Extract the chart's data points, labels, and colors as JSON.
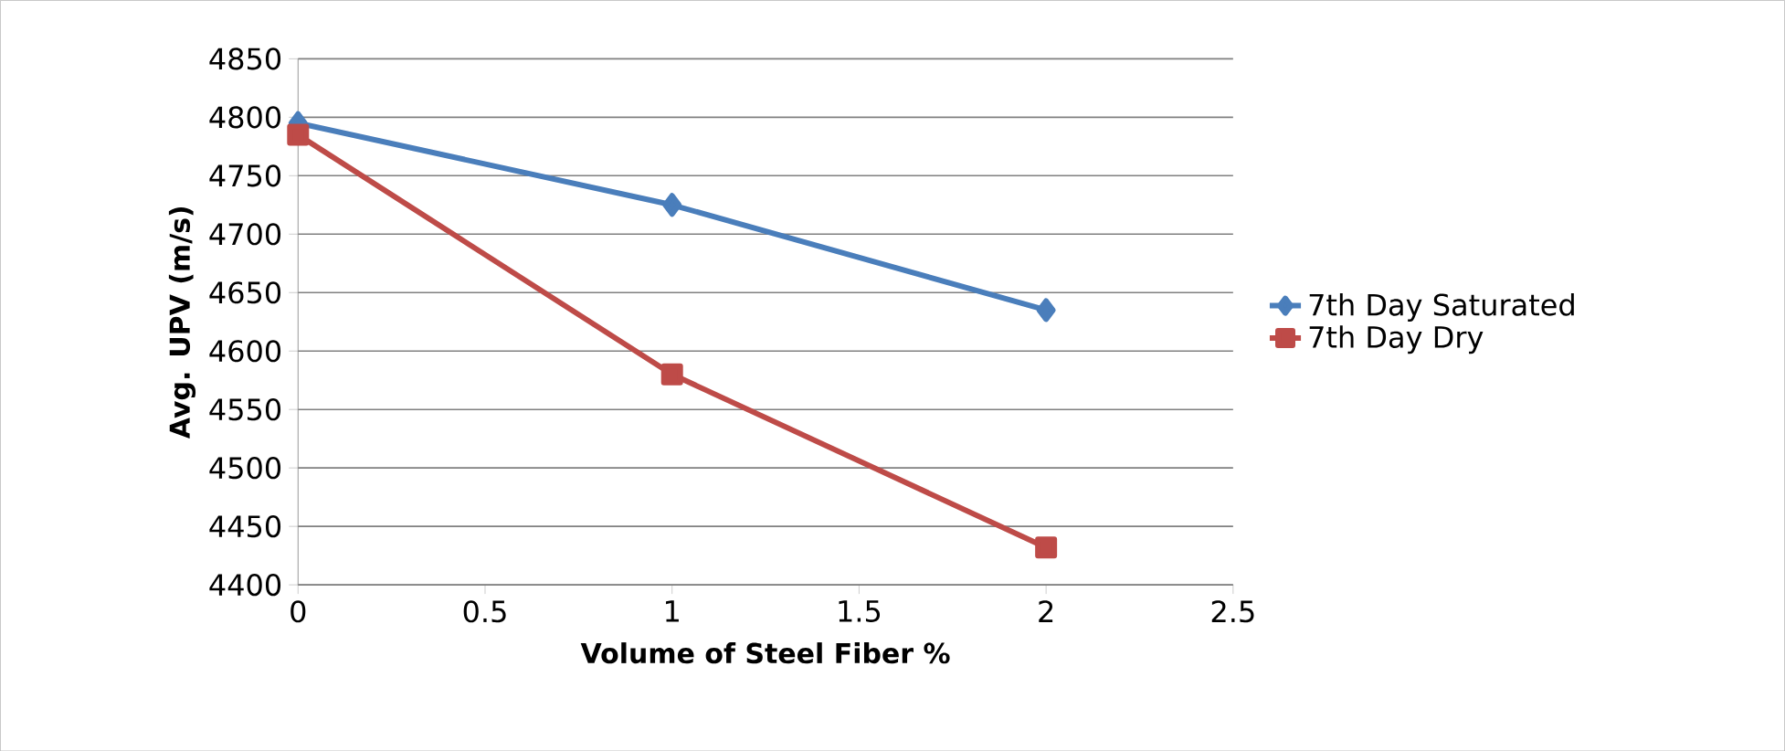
{
  "chart_data": {
    "type": "line",
    "xlabel": "Volume  of Steel Fiber %",
    "ylabel": "Avg. UPV (m/s)",
    "x": [
      0,
      1,
      2
    ],
    "series": [
      {
        "name": "7th Day Saturated",
        "color": "#4a7ebb",
        "marker": "diamond",
        "values": [
          4795,
          4725,
          4635
        ]
      },
      {
        "name": "7th Day Dry",
        "color": "#be4b48",
        "marker": "square",
        "values": [
          4785,
          4580,
          4432
        ]
      }
    ],
    "xlim": [
      0,
      2.5
    ],
    "xticks": [
      0,
      0.5,
      1,
      1.5,
      2,
      2.5
    ],
    "ylim": [
      4400,
      4850
    ],
    "yticks": [
      4400,
      4450,
      4500,
      4550,
      4600,
      4650,
      4700,
      4750,
      4800,
      4850
    ],
    "grid": "y",
    "legend": "right"
  }
}
